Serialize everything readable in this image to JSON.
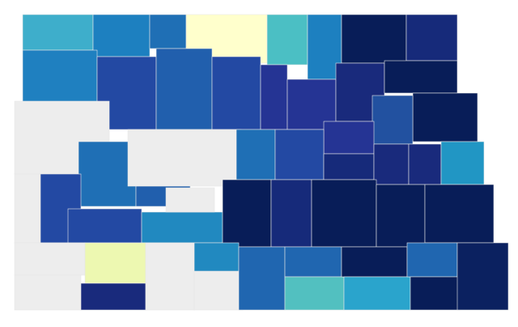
{
  "map": {
    "regions": [
      {
        "color": "#3eaecb"
      },
      {
        "color": "#1d80c0"
      },
      {
        "color": "#1f6fb5"
      },
      {
        "color": "#ffffcc"
      },
      {
        "color": "#4bbfc4"
      },
      {
        "color": "#1d80c0"
      },
      {
        "color": "#081d58"
      },
      {
        "color": "#162a7a"
      },
      {
        "color": "#1f80c0"
      },
      {
        "color": "#2349a3"
      },
      {
        "color": "#215fad"
      },
      {
        "color": "#2349a3"
      },
      {
        "color": "#253494"
      },
      {
        "color": "#253494"
      },
      {
        "color": "#192a7c"
      },
      {
        "color": "#081d58"
      },
      {
        "color": "#081d58"
      },
      {
        "color": "#2251a0"
      },
      {
        "color": "#253494"
      },
      {
        "color": "#ededed"
      },
      {
        "color": "#1f6fb5"
      },
      {
        "color": "#215fad"
      },
      {
        "color": "#ededed"
      },
      {
        "color": "#1f6fb5"
      },
      {
        "color": "#2349a3"
      },
      {
        "color": "#162a7a"
      },
      {
        "color": "#192a7c"
      },
      {
        "color": "#192a7c"
      },
      {
        "color": "#2196c4"
      },
      {
        "color": "#ededed"
      },
      {
        "color": "#2349a3"
      },
      {
        "color": "#2349a3"
      },
      {
        "color": "#2189c0"
      },
      {
        "color": "#ededed"
      },
      {
        "color": "#081d58"
      },
      {
        "color": "#162a7a"
      },
      {
        "color": "#081d58"
      },
      {
        "color": "#081d58"
      },
      {
        "color": "#081d58"
      },
      {
        "color": "#ededed"
      },
      {
        "color": "#ededed"
      },
      {
        "color": "#edf8b1"
      },
      {
        "color": "#192a7c"
      },
      {
        "color": "#ededed"
      },
      {
        "color": "#ededed"
      },
      {
        "color": "#2189c0"
      },
      {
        "color": "#2066b0"
      },
      {
        "color": "#2066b0"
      },
      {
        "color": "#52c0c0"
      },
      {
        "color": "#081d58"
      },
      {
        "color": "#2aa4cc"
      },
      {
        "color": "#2066b0"
      },
      {
        "color": "#081d58"
      },
      {
        "color": "#0b2160"
      }
    ]
  }
}
